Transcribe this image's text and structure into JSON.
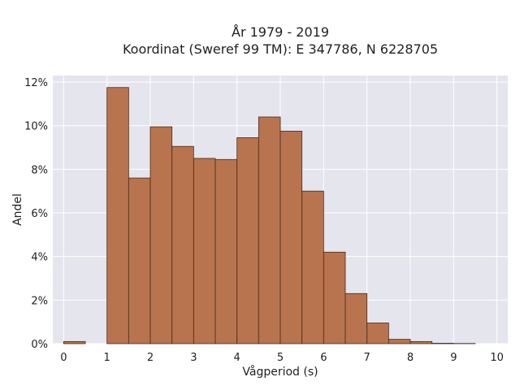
{
  "chart_data": {
    "type": "bar",
    "title": "År 1979 - 2019",
    "subtitle": "Koordinat (Sweref 99 TM): E 347786, N 6228705",
    "xlabel": "Vågperiod (s)",
    "ylabel": "Andel",
    "xlim": [
      -0.25,
      10.25
    ],
    "ylim": [
      0,
      12.3
    ],
    "x_ticks": [
      0,
      1,
      2,
      3,
      4,
      5,
      6,
      7,
      8,
      9,
      10
    ],
    "y_ticks": [
      0,
      2,
      4,
      6,
      8,
      10,
      12
    ],
    "y_tick_labels": [
      "0%",
      "2%",
      "4%",
      "6%",
      "8%",
      "10%",
      "12%"
    ],
    "bin_width": 0.5,
    "bins": [
      {
        "x0": 0.0,
        "value": 0.1
      },
      {
        "x0": 0.5,
        "value": 0.0
      },
      {
        "x0": 1.0,
        "value": 11.75
      },
      {
        "x0": 1.5,
        "value": 7.6
      },
      {
        "x0": 2.0,
        "value": 9.95
      },
      {
        "x0": 2.5,
        "value": 9.05
      },
      {
        "x0": 3.0,
        "value": 8.5
      },
      {
        "x0": 3.5,
        "value": 8.45
      },
      {
        "x0": 4.0,
        "value": 9.45
      },
      {
        "x0": 4.5,
        "value": 10.4
      },
      {
        "x0": 5.0,
        "value": 9.75
      },
      {
        "x0": 5.5,
        "value": 7.0
      },
      {
        "x0": 6.0,
        "value": 4.2
      },
      {
        "x0": 6.5,
        "value": 2.3
      },
      {
        "x0": 7.0,
        "value": 0.95
      },
      {
        "x0": 7.5,
        "value": 0.2
      },
      {
        "x0": 8.0,
        "value": 0.1
      },
      {
        "x0": 8.5,
        "value": 0.02
      },
      {
        "x0": 9.0,
        "value": 0.01
      }
    ],
    "grid": true,
    "colors": {
      "bar_fill": "#b8744f",
      "bar_stroke": "#4a2a18",
      "plot_background": "#e5e5ee",
      "grid": "#ffffff"
    }
  }
}
